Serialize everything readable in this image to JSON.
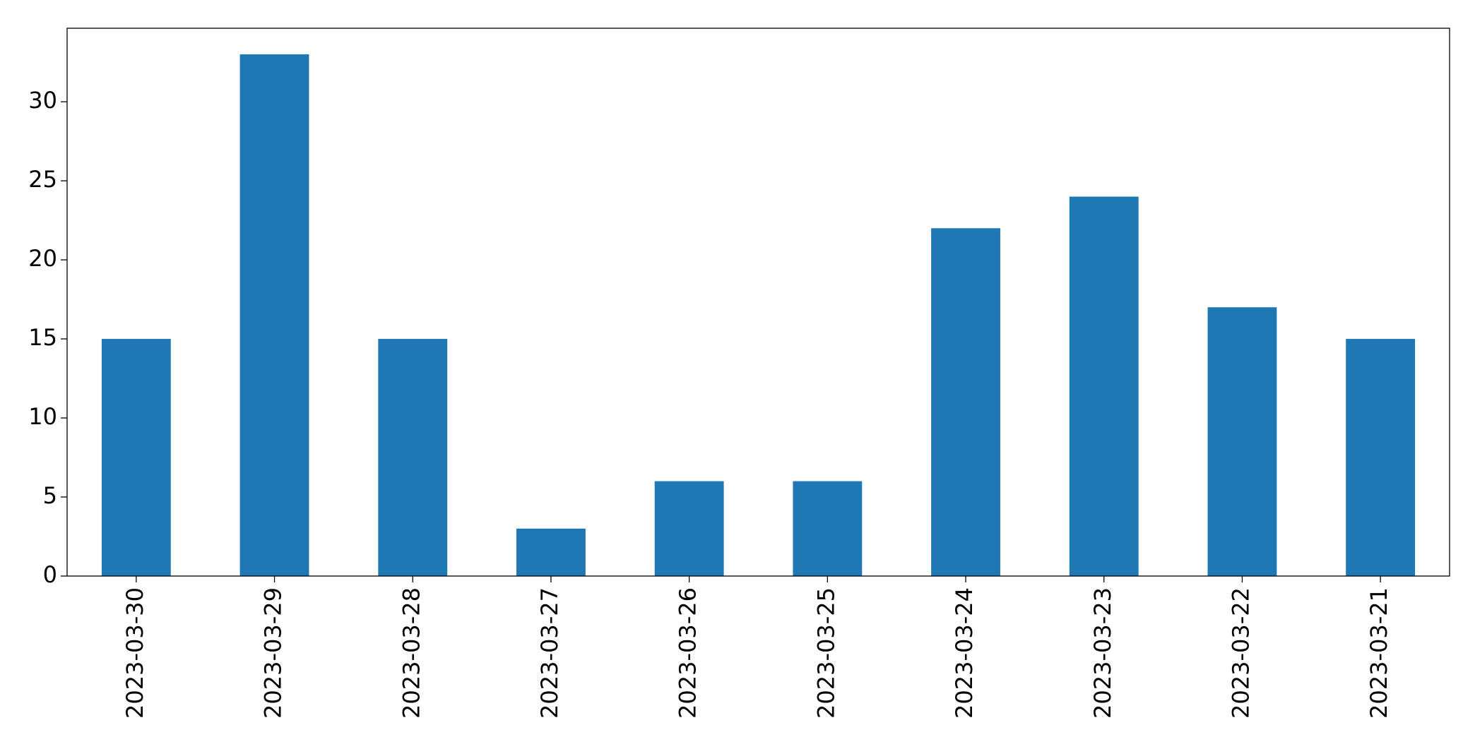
{
  "chart_data": {
    "type": "bar",
    "categories": [
      "2023-03-30",
      "2023-03-29",
      "2023-03-28",
      "2023-03-27",
      "2023-03-26",
      "2023-03-25",
      "2023-03-24",
      "2023-03-23",
      "2023-03-22",
      "2023-03-21"
    ],
    "values": [
      15,
      33,
      15,
      3,
      6,
      6,
      22,
      24,
      17,
      15
    ],
    "color": "#1f77b4",
    "ylim": [
      0,
      34.65
    ],
    "yticks": [
      0,
      5,
      10,
      15,
      20,
      25,
      30
    ],
    "grid": false
  }
}
